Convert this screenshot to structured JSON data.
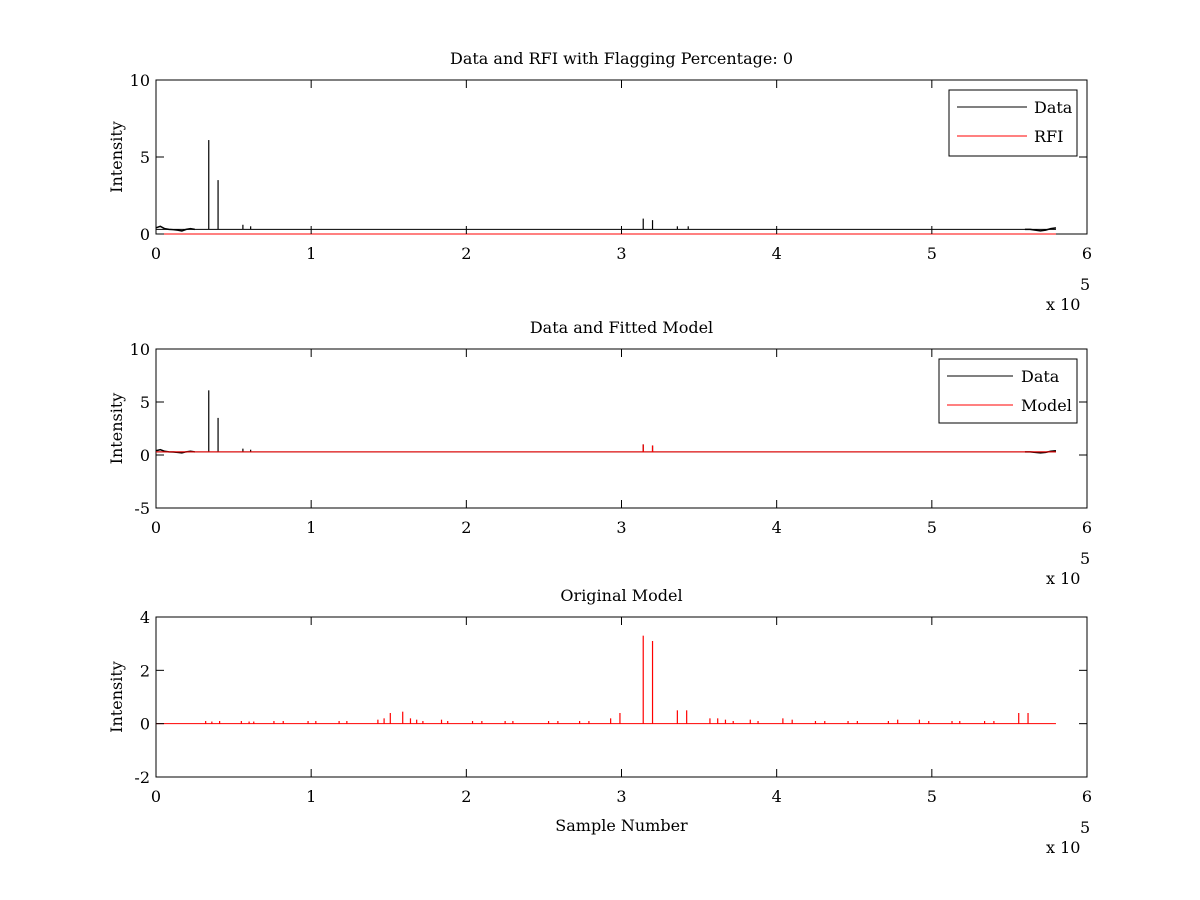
{
  "chart_data": [
    {
      "type": "line",
      "title": "Data and RFI with Flagging Percentage: 0",
      "xlabel": "",
      "ylabel": "Intensity",
      "xlim": [
        0,
        600000
      ],
      "ylim": [
        0,
        10
      ],
      "xticks": [
        0,
        1,
        2,
        3,
        4,
        5,
        6
      ],
      "yticks": [
        0,
        5,
        10
      ],
      "x_multiplier": "x 10",
      "x_exponent": "5",
      "grid": false,
      "legend_position": "top-right",
      "series": [
        {
          "name": "Data",
          "color": "#000000",
          "baseline": 0.3,
          "x_end": 580000,
          "hump_start": [
            0.4,
            0.5,
            0.35,
            0.3,
            0.28,
            0.25,
            0.2,
            0.3,
            0.35,
            0.3
          ],
          "hump_end": [
            0.3,
            0.3,
            0.25,
            0.2,
            0.25,
            0.35,
            0.4
          ],
          "spikes": [
            {
              "x": 34000,
              "y": 6.1
            },
            {
              "x": 40000,
              "y": 3.5
            },
            {
              "x": 56000,
              "y": 0.6
            },
            {
              "x": 61000,
              "y": 0.5
            },
            {
              "x": 314000,
              "y": 1.0
            },
            {
              "x": 320000,
              "y": 0.9
            },
            {
              "x": 336000,
              "y": 0.5
            },
            {
              "x": 343000,
              "y": 0.5
            }
          ]
        },
        {
          "name": "RFI",
          "color": "#ff0000",
          "baseline": 0.0,
          "x_end": 580000,
          "spikes": []
        }
      ]
    },
    {
      "type": "line",
      "title": "Data and Fitted Model",
      "xlabel": "",
      "ylabel": "Intensity",
      "xlim": [
        0,
        600000
      ],
      "ylim": [
        -5,
        10
      ],
      "xticks": [
        0,
        1,
        2,
        3,
        4,
        5,
        6
      ],
      "yticks": [
        -5,
        0,
        5,
        10
      ],
      "x_multiplier": "x 10",
      "x_exponent": "5",
      "grid": false,
      "legend_position": "top-right",
      "series": [
        {
          "name": "Data",
          "color": "#000000",
          "baseline": 0.3,
          "x_end": 580000,
          "hump_start": [
            0.4,
            0.5,
            0.35,
            0.3,
            0.28,
            0.25,
            0.2,
            0.3,
            0.35,
            0.3
          ],
          "hump_end": [
            0.3,
            0.3,
            0.25,
            0.2,
            0.25,
            0.35,
            0.4
          ],
          "spikes": [
            {
              "x": 34000,
              "y": 6.1
            },
            {
              "x": 40000,
              "y": 3.5
            },
            {
              "x": 56000,
              "y": 0.6
            },
            {
              "x": 61000,
              "y": 0.5
            },
            {
              "x": 314000,
              "y": 1.0
            },
            {
              "x": 320000,
              "y": 0.9
            }
          ]
        },
        {
          "name": "Model",
          "color": "#ff0000",
          "baseline": 0.3,
          "x_end": 580000,
          "spikes": [
            {
              "x": 314000,
              "y": 1.0
            },
            {
              "x": 320000,
              "y": 0.9
            }
          ]
        }
      ]
    },
    {
      "type": "line",
      "title": "Original Model",
      "xlabel": "Sample Number",
      "ylabel": "Intensity",
      "xlim": [
        0,
        600000
      ],
      "ylim": [
        -2,
        4
      ],
      "xticks": [
        0,
        1,
        2,
        3,
        4,
        5,
        6
      ],
      "yticks": [
        -2,
        0,
        2,
        4
      ],
      "x_multiplier": "x 10",
      "x_exponent": "5",
      "grid": false,
      "legend_position": "none",
      "series": [
        {
          "color": "#ff0000",
          "baseline": 0.0,
          "x_start": 0,
          "x_end": 580000,
          "spikes": [
            {
              "x": 32000,
              "y": 0.1
            },
            {
              "x": 36000,
              "y": 0.08
            },
            {
              "x": 41000,
              "y": 0.1
            },
            {
              "x": 55000,
              "y": 0.1
            },
            {
              "x": 60000,
              "y": 0.08
            },
            {
              "x": 63000,
              "y": 0.08
            },
            {
              "x": 76000,
              "y": 0.1
            },
            {
              "x": 82000,
              "y": 0.1
            },
            {
              "x": 98000,
              "y": 0.1
            },
            {
              "x": 103000,
              "y": 0.1
            },
            {
              "x": 118000,
              "y": 0.1
            },
            {
              "x": 123000,
              "y": 0.1
            },
            {
              "x": 143000,
              "y": 0.15
            },
            {
              "x": 147000,
              "y": 0.2
            },
            {
              "x": 151000,
              "y": 0.4
            },
            {
              "x": 159000,
              "y": 0.45
            },
            {
              "x": 164000,
              "y": 0.2
            },
            {
              "x": 168000,
              "y": 0.15
            },
            {
              "x": 172000,
              "y": 0.1
            },
            {
              "x": 184000,
              "y": 0.15
            },
            {
              "x": 188000,
              "y": 0.1
            },
            {
              "x": 204000,
              "y": 0.1
            },
            {
              "x": 210000,
              "y": 0.1
            },
            {
              "x": 225000,
              "y": 0.1
            },
            {
              "x": 230000,
              "y": 0.1
            },
            {
              "x": 253000,
              "y": 0.1
            },
            {
              "x": 259000,
              "y": 0.1
            },
            {
              "x": 273000,
              "y": 0.1
            },
            {
              "x": 279000,
              "y": 0.1
            },
            {
              "x": 293000,
              "y": 0.2
            },
            {
              "x": 299000,
              "y": 0.4
            },
            {
              "x": 314000,
              "y": 3.3
            },
            {
              "x": 320000,
              "y": 3.1
            },
            {
              "x": 336000,
              "y": 0.5
            },
            {
              "x": 342000,
              "y": 0.5
            },
            {
              "x": 357000,
              "y": 0.2
            },
            {
              "x": 362000,
              "y": 0.2
            },
            {
              "x": 367000,
              "y": 0.15
            },
            {
              "x": 372000,
              "y": 0.1
            },
            {
              "x": 383000,
              "y": 0.15
            },
            {
              "x": 388000,
              "y": 0.1
            },
            {
              "x": 404000,
              "y": 0.2
            },
            {
              "x": 410000,
              "y": 0.15
            },
            {
              "x": 425000,
              "y": 0.1
            },
            {
              "x": 431000,
              "y": 0.1
            },
            {
              "x": 446000,
              "y": 0.1
            },
            {
              "x": 452000,
              "y": 0.1
            },
            {
              "x": 472000,
              "y": 0.1
            },
            {
              "x": 478000,
              "y": 0.15
            },
            {
              "x": 492000,
              "y": 0.15
            },
            {
              "x": 498000,
              "y": 0.1
            },
            {
              "x": 513000,
              "y": 0.1
            },
            {
              "x": 518000,
              "y": 0.1
            },
            {
              "x": 534000,
              "y": 0.1
            },
            {
              "x": 540000,
              "y": 0.1
            },
            {
              "x": 556000,
              "y": 0.4
            },
            {
              "x": 562000,
              "y": 0.4
            }
          ]
        }
      ]
    }
  ]
}
